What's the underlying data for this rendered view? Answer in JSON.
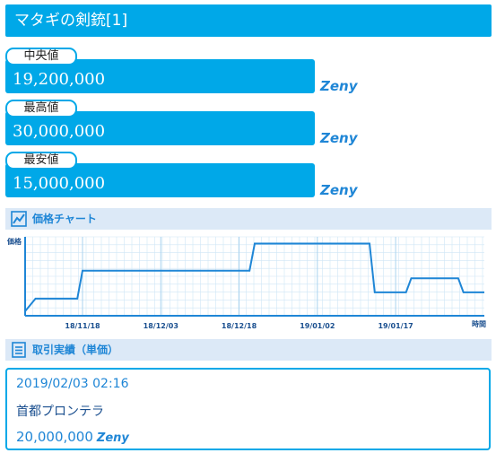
{
  "header": {
    "title": "マタギの剣銃[1]"
  },
  "prices": [
    {
      "label": "中央値",
      "value": "19,200,000",
      "unit": "Zeny"
    },
    {
      "label": "最高値",
      "value": "30,000,000",
      "unit": "Zeny"
    },
    {
      "label": "最安値",
      "value": "15,000,000",
      "unit": "Zeny"
    }
  ],
  "chart_section": {
    "title": "価格チャート",
    "icon": "line-chart-icon"
  },
  "chart_data": {
    "type": "line",
    "ylabel": "価格",
    "xlabel": "時間",
    "x_ticks": [
      "18/11/18",
      "18/12/03",
      "18/12/18",
      "19/01/02",
      "19/01/17"
    ],
    "grid": true,
    "series": [
      {
        "color": "#1f86d6",
        "points": [
          [
            "18/11/07",
            15000000
          ],
          [
            "18/11/09",
            17800000
          ],
          [
            "18/11/17",
            17800000
          ],
          [
            "18/11/18",
            24000000
          ],
          [
            "18/12/20",
            24000000
          ],
          [
            "18/12/21",
            30000000
          ],
          [
            "19/01/12",
            30000000
          ],
          [
            "19/01/13",
            19200000
          ],
          [
            "19/01/19",
            19200000
          ],
          [
            "19/01/20",
            22300000
          ],
          [
            "19/01/29",
            22300000
          ],
          [
            "19/01/30",
            19200000
          ],
          [
            "19/02/03",
            19200000
          ]
        ]
      }
    ],
    "line_color": "#1f86d6",
    "grid_color": "#cfe6f6"
  },
  "records_section": {
    "title": "取引実績（単価）",
    "icon": "document-list-icon"
  },
  "records": [
    {
      "date": "2019/02/03 02:16",
      "location": "首都プロンテラ",
      "price": "20,000,000",
      "unit": "Zeny"
    }
  ]
}
